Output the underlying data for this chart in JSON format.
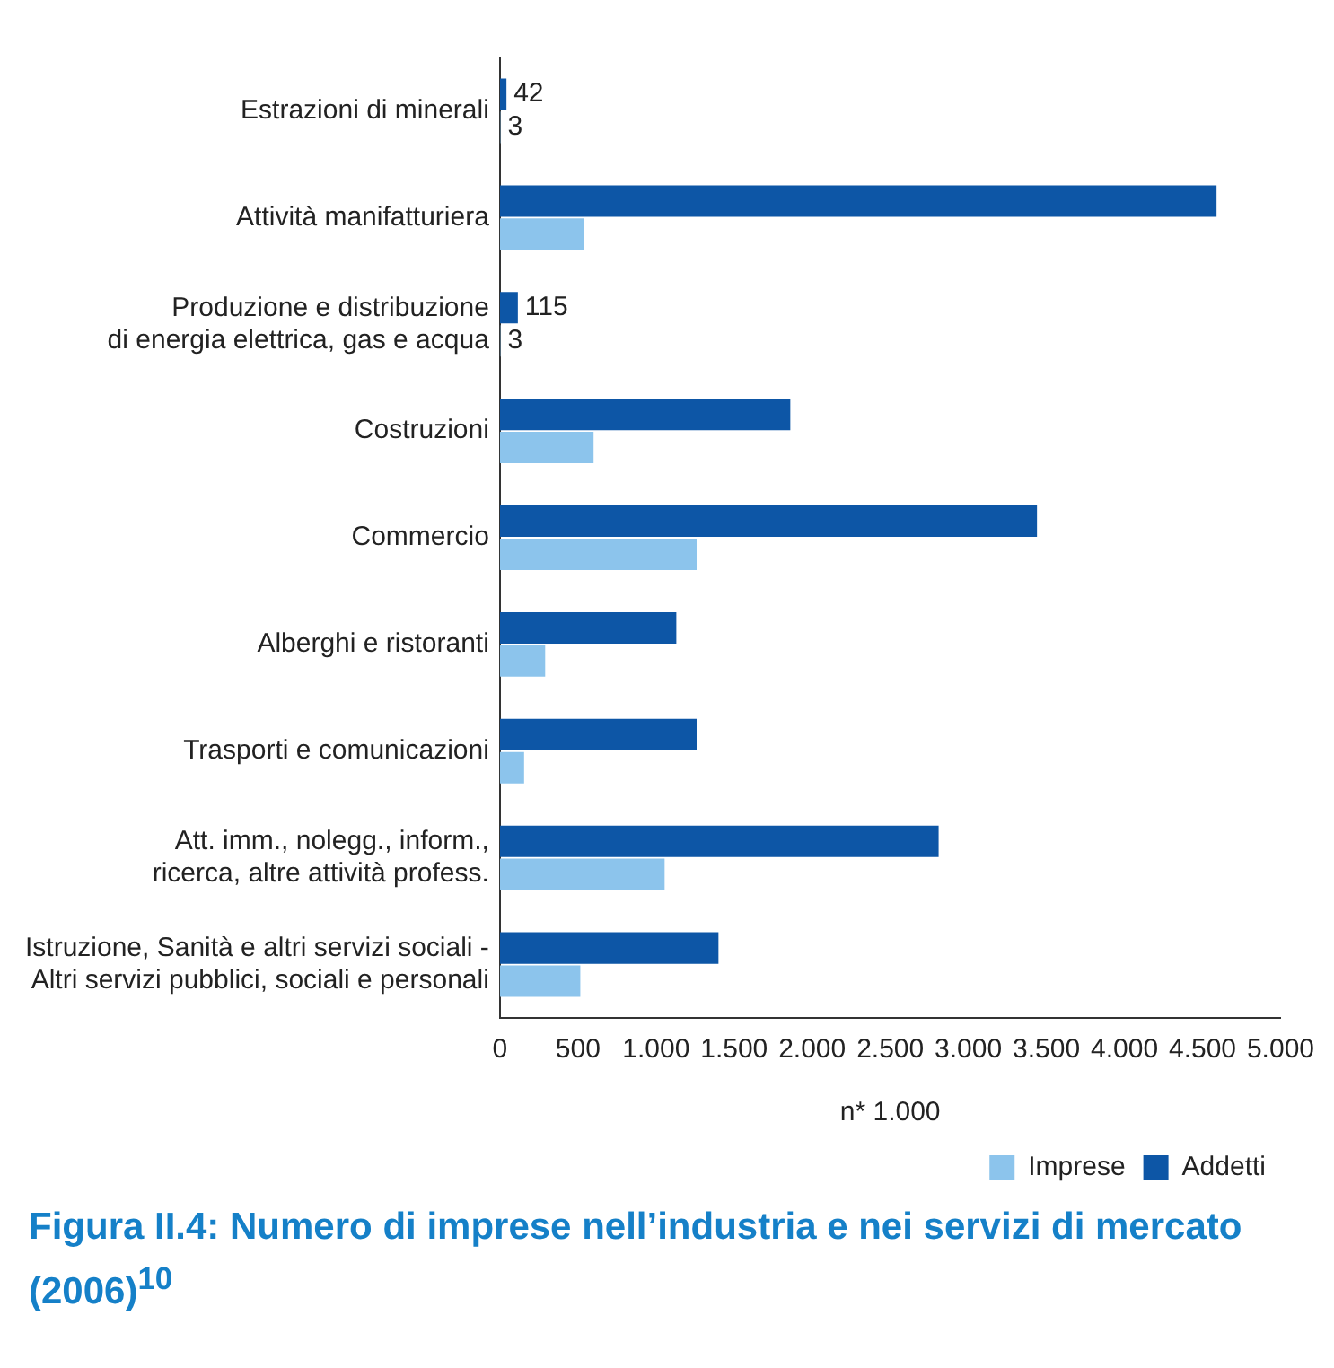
{
  "chart_data": {
    "type": "bar",
    "orientation": "horizontal",
    "title": "Figura II.4: Numero di imprese nell’industria e nei servizi di mercato (2006)$^{10}$",
    "xlabel": "n* 1.000",
    "categories": [
      "Estrazioni di minerali",
      "Attività manifatturiera",
      "Produzione e distribuzione\ndi energia elettrica, gas e acqua",
      "Costruzioni",
      "Commercio",
      "Alberghi e ristoranti",
      "Trasporti e comunicazioni",
      "Att. imm., nolegg., inform.,\nricerca, altre attività profess.",
      "Istruzione, Sanità e altri servizi sociali -\nAltri servizi pubblici, sociali e personali"
    ],
    "series": [
      {
        "name": "Imprese",
        "color": "#8cc4ec",
        "values": [
          3,
          540,
          3,
          600,
          1260,
          290,
          155,
          1055,
          515
        ],
        "value_labels": [
          "3",
          null,
          "3",
          null,
          null,
          null,
          null,
          null,
          null
        ]
      },
      {
        "name": "Addetti",
        "color": "#0d56a6",
        "values": [
          42,
          4590,
          115,
          1860,
          3440,
          1130,
          1260,
          2810,
          1400
        ],
        "value_labels": [
          "42",
          null,
          "115",
          null,
          null,
          null,
          null,
          null,
          null
        ]
      }
    ],
    "xlim": [
      0,
      5000
    ],
    "xticks": [
      0,
      500,
      {
        "value": 1000,
        "label": "1.000"
      },
      {
        "value": 1500,
        "label": "1.500"
      },
      {
        "value": 2000,
        "label": "2.000"
      },
      {
        "value": 2500,
        "label": "2.500"
      },
      {
        "value": 3000,
        "label": "3.000"
      },
      {
        "value": 3500,
        "label": "3.500"
      },
      {
        "value": 4000,
        "label": "4.000"
      },
      {
        "value": 4500,
        "label": "4.500"
      },
      {
        "value": 5000,
        "label": "5.000"
      }
    ],
    "grid": false,
    "legend": "bottom right"
  }
}
